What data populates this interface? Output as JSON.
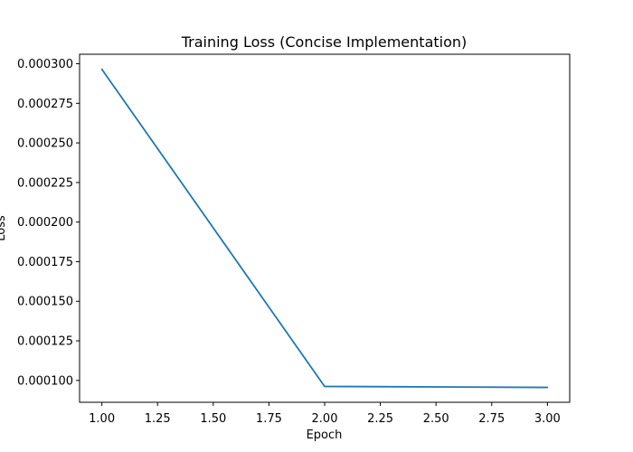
{
  "chart_data": {
    "type": "line",
    "title": "Training Loss (Concise Implementation)",
    "xlabel": "Epoch",
    "ylabel": "Loss",
    "xlim": [
      0.9,
      3.1
    ],
    "ylim": [
      8.62e-05,
      0.000306
    ],
    "xticks": [
      1.0,
      1.25,
      1.5,
      1.75,
      2.0,
      2.25,
      2.5,
      2.75,
      3.0
    ],
    "xtick_labels": [
      "1.00",
      "1.25",
      "1.50",
      "1.75",
      "2.00",
      "2.25",
      "2.50",
      "2.75",
      "3.00"
    ],
    "yticks": [
      0.0001,
      0.000125,
      0.00015,
      0.000175,
      0.0002,
      0.000225,
      0.00025,
      0.000275,
      0.0003
    ],
    "ytick_labels": [
      "0.000100",
      "0.000125",
      "0.000150",
      "0.000175",
      "0.000200",
      "0.000225",
      "0.000250",
      "0.000275",
      "0.000300"
    ],
    "grid": false,
    "series": [
      {
        "x": [
          1,
          2,
          3
        ],
        "values": [
          0.0002965,
          9.62e-05,
          9.56e-05
        ],
        "color": "#1f77b4"
      }
    ]
  }
}
